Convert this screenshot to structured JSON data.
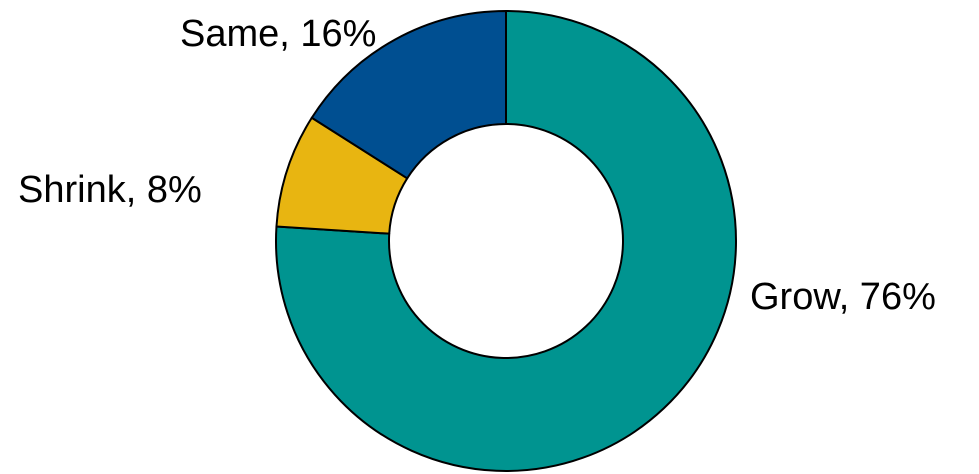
{
  "chart_data": {
    "type": "pie",
    "variant": "donut",
    "title": "",
    "slices": [
      {
        "name": "Grow",
        "value": 76,
        "color": "#009490",
        "label": "Grow, 76%"
      },
      {
        "name": "Shrink",
        "value": 8,
        "color": "#e8b511",
        "label": "Shrink, 8%"
      },
      {
        "name": "Same",
        "value": 16,
        "color": "#004f91",
        "label": "Same, 16%"
      }
    ],
    "legend": "none",
    "data_labels": "outside"
  }
}
